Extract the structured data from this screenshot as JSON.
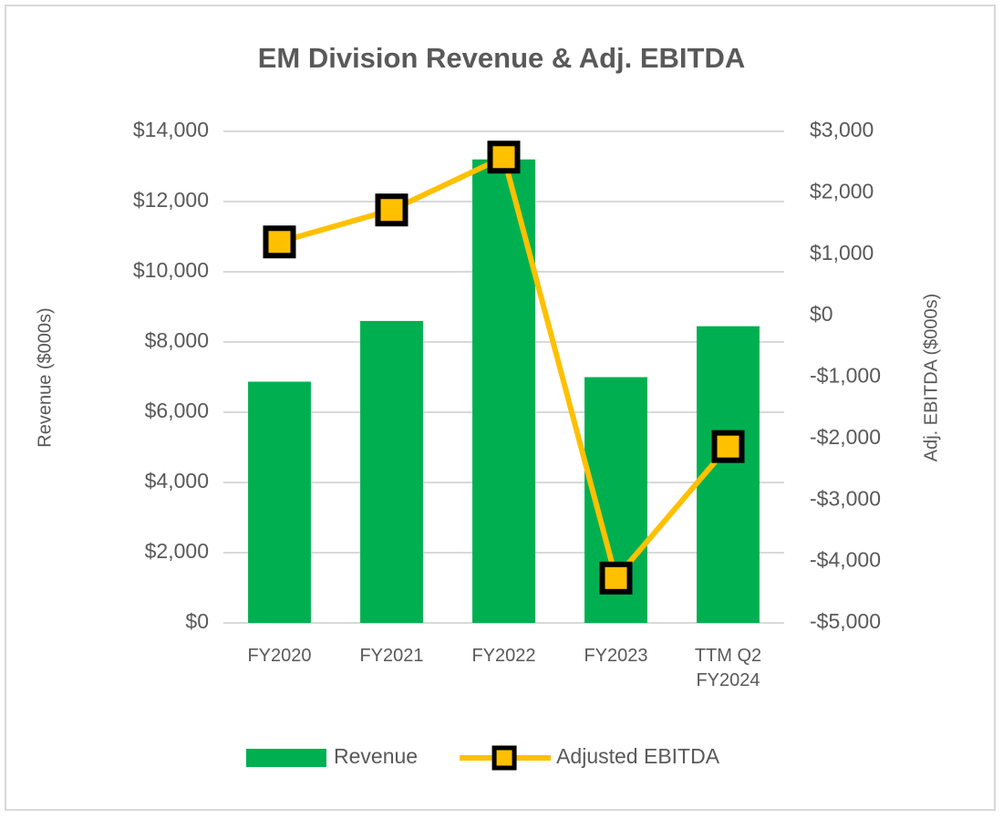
{
  "chart_data": {
    "type": "bar",
    "title": "EM Division Revenue & Adj. EBITDA",
    "categories": [
      "FY2020",
      "FY2021",
      "FY2022",
      "FY2023",
      "TTM Q2 FY2024"
    ],
    "series": [
      {
        "name": "Revenue",
        "type": "bar",
        "color": "#00b050",
        "values": [
          6870,
          8600,
          13200,
          7000,
          8450
        ]
      },
      {
        "name": "Adjusted EBITDA",
        "type": "line",
        "axis": "y2",
        "color": "#ffc000",
        "values": [
          1200,
          1720,
          2580,
          -4270,
          -2130
        ]
      }
    ],
    "ylabel": "Revenue ($000s)",
    "y2label": "Adj. EBITDA ($000s)",
    "ylim": [
      0,
      14000
    ],
    "yticks": [
      {
        "value": 0,
        "label": "$0"
      },
      {
        "value": 2000,
        "label": "$2,000"
      },
      {
        "value": 4000,
        "label": "$4,000"
      },
      {
        "value": 6000,
        "label": "$6,000"
      },
      {
        "value": 8000,
        "label": "$8,000"
      },
      {
        "value": 10000,
        "label": "$10,000"
      },
      {
        "value": 12000,
        "label": "$12,000"
      },
      {
        "value": 14000,
        "label": "$14,000"
      }
    ],
    "y2lim": [
      -5000,
      3000
    ],
    "y2ticks": [
      {
        "value": -5000,
        "label": "-$5,000"
      },
      {
        "value": -4000,
        "label": "-$4,000"
      },
      {
        "value": -3000,
        "label": "-$3,000"
      },
      {
        "value": -2000,
        "label": "-$2,000"
      },
      {
        "value": -1000,
        "label": "-$1,000"
      },
      {
        "value": 0,
        "label": "$0"
      },
      {
        "value": 1000,
        "label": "$1,000"
      },
      {
        "value": 2000,
        "label": "$2,000"
      },
      {
        "value": 3000,
        "label": "$3,000"
      }
    ],
    "grid": true,
    "legend": "bottom"
  }
}
